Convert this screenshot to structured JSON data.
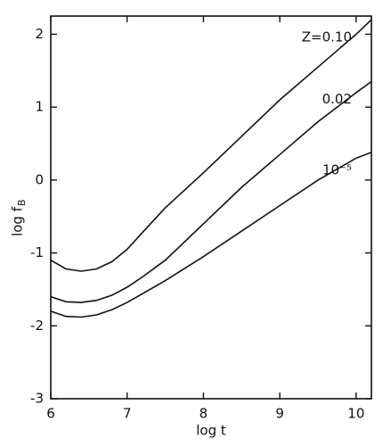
{
  "chart_data": {
    "type": "line",
    "xlabel": "log t",
    "ylabel": "log f",
    "ylabel_subscript": "B",
    "x": [
      6,
      6.2,
      6.4,
      6.6,
      6.8,
      7,
      7.2,
      7.5,
      8,
      8.5,
      9,
      9.5,
      10,
      10.2
    ],
    "series": [
      {
        "name": "Z=0.10",
        "color": "#111111",
        "values": [
          -1.1,
          -1.22,
          -1.25,
          -1.22,
          -1.12,
          -0.95,
          -0.72,
          -0.38,
          0.1,
          0.6,
          1.1,
          1.55,
          2.0,
          2.2
        ]
      },
      {
        "name": "0.02",
        "color": "#111111",
        "values": [
          -1.6,
          -1.67,
          -1.68,
          -1.65,
          -1.58,
          -1.47,
          -1.33,
          -1.1,
          -0.6,
          -0.1,
          0.35,
          0.8,
          1.2,
          1.35
        ]
      },
      {
        "name": "10⁻⁵",
        "color": "#111111",
        "values": [
          -1.8,
          -1.87,
          -1.88,
          -1.85,
          -1.78,
          -1.68,
          -1.56,
          -1.38,
          -1.05,
          -0.7,
          -0.35,
          0.0,
          0.3,
          0.38
        ]
      }
    ],
    "xlim": [
      6,
      10.2
    ],
    "ylim": [
      -3,
      2.25
    ],
    "xticks": [
      6,
      7,
      8,
      9,
      10
    ],
    "yticks": [
      -3,
      -2,
      -1,
      0,
      1,
      2
    ]
  }
}
